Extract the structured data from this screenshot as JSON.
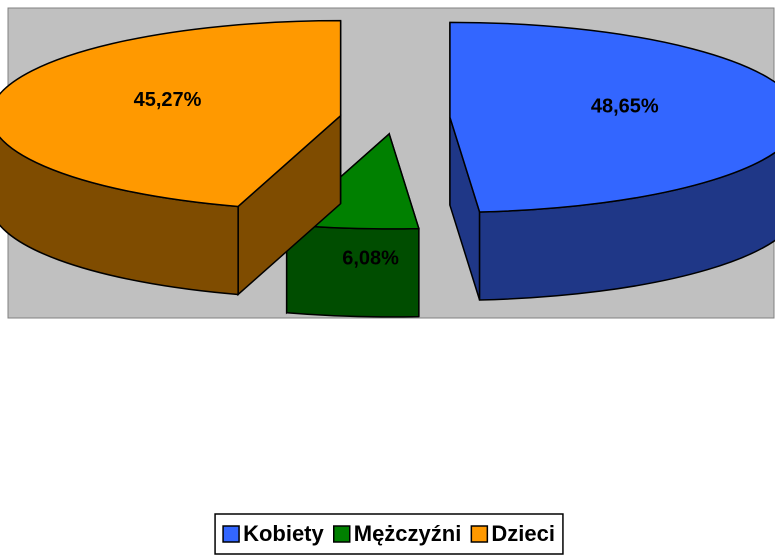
{
  "chart_data": {
    "type": "pie3d",
    "categories": [
      "Kobiety",
      "Mężczyźni",
      "Dzieci"
    ],
    "values": [
      48.65,
      6.08,
      45.27
    ],
    "value_labels": [
      "48,65%",
      "6,08%",
      "45,27%"
    ],
    "colors": [
      "#3366ff",
      "#008000",
      "#ff9900"
    ],
    "side_colors": [
      "#1f3787",
      "#004d00",
      "#7f4c00"
    ],
    "legend": "bottom"
  }
}
